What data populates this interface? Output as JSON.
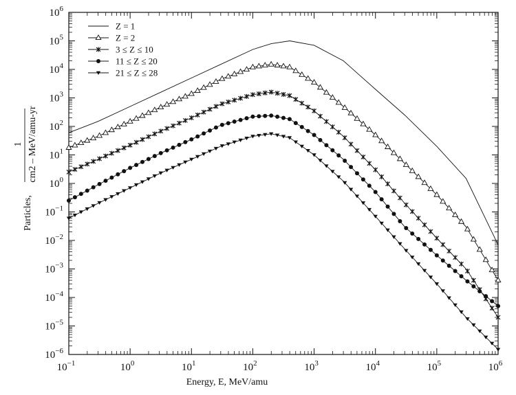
{
  "chart_data": {
    "type": "line",
    "title": "",
    "xlabel": "Energy, E, MeV/amu",
    "ylabel": {
      "prefix": "Particles,",
      "numerator": "1",
      "denominator": "cm2 – MeV/amu-yr"
    },
    "x_scale": "log",
    "y_scale": "log",
    "xlim": [
      0.1,
      1000000
    ],
    "ylim": [
      1e-06,
      1000000
    ],
    "x_ticks": [
      {
        "base": "10",
        "exp": "−1"
      },
      {
        "base": "10",
        "exp": "0"
      },
      {
        "base": "10",
        "exp": "1"
      },
      {
        "base": "10",
        "exp": "2"
      },
      {
        "base": "10",
        "exp": "3"
      },
      {
        "base": "10",
        "exp": "4"
      },
      {
        "base": "10",
        "exp": "5"
      },
      {
        "base": "10",
        "exp": "6"
      }
    ],
    "y_ticks": [
      {
        "base": "10",
        "exp": "−6"
      },
      {
        "base": "10",
        "exp": "−5"
      },
      {
        "base": "10",
        "exp": "−4"
      },
      {
        "base": "10",
        "exp": "−3"
      },
      {
        "base": "10",
        "exp": "−2"
      },
      {
        "base": "10",
        "exp": "−1"
      },
      {
        "base": "10",
        "exp": "0"
      },
      {
        "base": "10",
        "exp": "1"
      },
      {
        "base": "10",
        "exp": "2"
      },
      {
        "base": "10",
        "exp": "3"
      },
      {
        "base": "10",
        "exp": "4"
      },
      {
        "base": "10",
        "exp": "5"
      },
      {
        "base": "10",
        "exp": "6"
      }
    ],
    "legend_position": "top-left",
    "grid": false,
    "x": [
      0.1,
      0.3,
      1,
      3,
      10,
      30,
      100,
      200,
      400,
      1000,
      3000,
      10000,
      30000,
      100000,
      300000,
      1000000
    ],
    "series": [
      {
        "name": "Z = 1",
        "marker": "none",
        "values": [
          60,
          150,
          500,
          1500,
          5000,
          15000,
          50000,
          80000,
          100000,
          70000,
          20000,
          2000,
          250,
          20,
          1.5,
          0.007
        ]
      },
      {
        "name": "Z = 2",
        "marker": "triangle",
        "values": [
          18,
          45,
          150,
          450,
          1400,
          4500,
          12000,
          15000,
          12000,
          3500,
          500,
          50,
          5,
          0.4,
          0.03,
          0.0004
        ]
      },
      {
        "name": "3 ≤ Z ≤ 10",
        "marker": "star",
        "values": [
          2.5,
          7,
          22,
          65,
          200,
          600,
          1300,
          1600,
          1200,
          350,
          45,
          3,
          0.2,
          0.012,
          0.001,
          2e-05
        ]
      },
      {
        "name": "11 ≤ Z ≤ 20",
        "marker": "dot",
        "values": [
          0.25,
          0.9,
          3.5,
          11,
          35,
          110,
          220,
          240,
          180,
          50,
          7,
          0.5,
          0.03,
          0.003,
          0.0004,
          5e-05
        ]
      },
      {
        "name": "21 ≤ Z ≤ 28",
        "marker": "tri-down",
        "values": [
          0.06,
          0.2,
          0.7,
          2.2,
          7,
          20,
          45,
          55,
          40,
          10,
          1.2,
          0.07,
          0.005,
          0.0003,
          2e-05,
          1.5e-06
        ]
      }
    ]
  }
}
